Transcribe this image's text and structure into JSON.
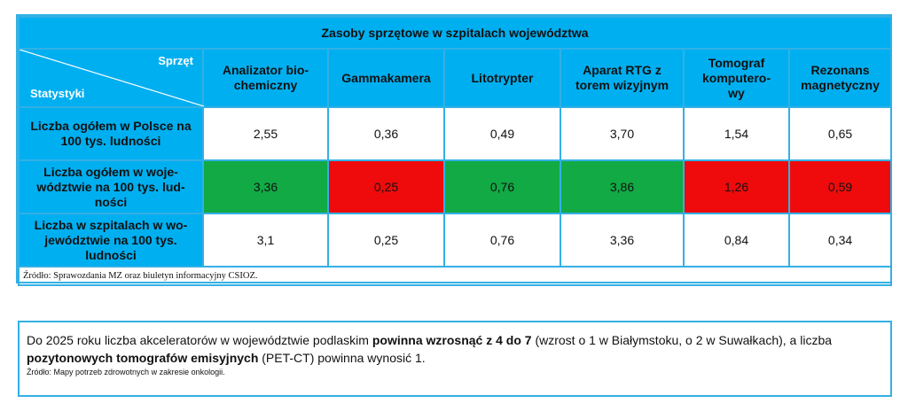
{
  "table": {
    "title": "Zasoby sprzętowe w szpitalach województwa",
    "corner_top": "Sprzęt",
    "corner_bottom": "Statystyki",
    "columns": [
      [
        "Analizator bio-",
        "chemiczny"
      ],
      [
        "Gammakamera"
      ],
      [
        "Litotrypter"
      ],
      [
        "Aparat RTG z",
        "torem wizyjnym"
      ],
      [
        "Tomograf",
        "komputero-",
        "wy"
      ],
      [
        "Rezonans",
        "magnetyczny"
      ]
    ],
    "rows": [
      {
        "label": [
          "Liczba ogółem w Polsce na",
          "100 tys. ludności"
        ],
        "values": [
          "2,55",
          "0,36",
          "0,49",
          "3,70",
          "1,54",
          "0,65"
        ],
        "colors": [
          "white",
          "white",
          "white",
          "white",
          "white",
          "white"
        ]
      },
      {
        "label": [
          "Liczba ogółem w woje-",
          "wództwie na 100 tys. lud-",
          "ności"
        ],
        "values": [
          "3,36",
          "0,25",
          "0,76",
          "3,86",
          "1,26",
          "0,59"
        ],
        "colors": [
          "green",
          "red",
          "green",
          "green",
          "red",
          "red"
        ]
      },
      {
        "label": [
          "Liczba w szpitalach w wo-",
          "jewództwie na 100 tys.",
          "ludności"
        ],
        "values": [
          "3,1",
          "0,25",
          "0,76",
          "3,36",
          "0,84",
          "0,34"
        ],
        "colors": [
          "white",
          "white",
          "white",
          "white",
          "white",
          "white"
        ]
      }
    ],
    "source": "Źródło: Sprawozdania MZ oraz biuletyn informacyjny CSIOZ."
  },
  "note": {
    "line1_a": "Do 2025 roku liczba akceleratorów w województwie podlaskim ",
    "line1_bold": "powinna wzrosnąć z 4 do 7",
    "line1_b": " (wzrost o 1 w Białymstoku, o 2 w Suwałkach), a liczba",
    "line2_bold": "pozytonowych tomografów emisyjnych",
    "line2_a": " (PET-CT) powinna wynosić 1.",
    "source": "Źródło: Mapy potrzeb zdrowotnych w zakresie onkologii."
  },
  "colors": {
    "header_blue": "#00aff0",
    "green": "#11aa44",
    "red": "#ef0b0b",
    "border": "#33b0e4"
  }
}
